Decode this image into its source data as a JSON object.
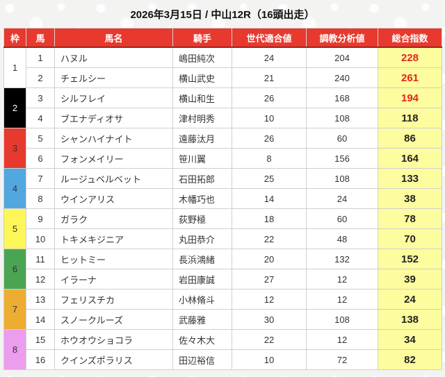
{
  "page": {
    "title": "2026年3月15日 / 中山12R（16頭出走）"
  },
  "colors": {
    "header_bg": "#e7392e",
    "header_fg": "#ffffff",
    "header_border_bottom": "#9e241c",
    "total_column_bg": "#fdfc9e",
    "hot_value": "#e8231f",
    "normal_value": "#222222",
    "table_border": "#cfcfcf",
    "page_bg": "#f3f3f2"
  },
  "table": {
    "headers": [
      {
        "key": "waku",
        "label": "枠"
      },
      {
        "key": "uma",
        "label": "馬"
      },
      {
        "key": "name",
        "label": "馬名"
      },
      {
        "key": "jockey",
        "label": "騎手"
      },
      {
        "key": "gen",
        "label": "世代適合値"
      },
      {
        "key": "train",
        "label": "調教分析値"
      },
      {
        "key": "total",
        "label": "総合指数"
      }
    ],
    "frames": [
      {
        "no": "1",
        "bg": "#ffffff",
        "fg": "#333333"
      },
      {
        "no": "2",
        "bg": "#000000",
        "fg": "#ffffff"
      },
      {
        "no": "3",
        "bg": "#e7392e",
        "fg": "#333333"
      },
      {
        "no": "4",
        "bg": "#52a7de",
        "fg": "#333333"
      },
      {
        "no": "5",
        "bg": "#fcf659",
        "fg": "#333333"
      },
      {
        "no": "6",
        "bg": "#4aa452",
        "fg": "#333333"
      },
      {
        "no": "7",
        "bg": "#edad33",
        "fg": "#333333"
      },
      {
        "no": "8",
        "bg": "#ec9ded",
        "fg": "#333333"
      }
    ],
    "rows": [
      {
        "num": "1",
        "name": "ハヌル",
        "jockey": "嶋田純次",
        "gen": "24",
        "train": "204",
        "total": "228",
        "hot": true
      },
      {
        "num": "2",
        "name": "チェルシー",
        "jockey": "横山武史",
        "gen": "21",
        "train": "240",
        "total": "261",
        "hot": true
      },
      {
        "num": "3",
        "name": "シルフレイ",
        "jockey": "横山和生",
        "gen": "26",
        "train": "168",
        "total": "194",
        "hot": true
      },
      {
        "num": "4",
        "name": "ブエナディオサ",
        "jockey": "津村明秀",
        "gen": "10",
        "train": "108",
        "total": "118",
        "hot": false
      },
      {
        "num": "5",
        "name": "シャンハイナイト",
        "jockey": "遠藤汰月",
        "gen": "26",
        "train": "60",
        "total": "86",
        "hot": false
      },
      {
        "num": "6",
        "name": "フォンメイリー",
        "jockey": "笹川翼",
        "gen": "8",
        "train": "156",
        "total": "164",
        "hot": false
      },
      {
        "num": "7",
        "name": "ルージュベルベット",
        "jockey": "石田拓郎",
        "gen": "25",
        "train": "108",
        "total": "133",
        "hot": false
      },
      {
        "num": "8",
        "name": "ウインアリス",
        "jockey": "木幡巧也",
        "gen": "14",
        "train": "24",
        "total": "38",
        "hot": false
      },
      {
        "num": "9",
        "name": "ガラク",
        "jockey": "荻野極",
        "gen": "18",
        "train": "60",
        "total": "78",
        "hot": false
      },
      {
        "num": "10",
        "name": "トキメキジニア",
        "jockey": "丸田恭介",
        "gen": "22",
        "train": "48",
        "total": "70",
        "hot": false
      },
      {
        "num": "11",
        "name": "ヒットミー",
        "jockey": "長浜鴻緒",
        "gen": "20",
        "train": "132",
        "total": "152",
        "hot": false
      },
      {
        "num": "12",
        "name": "イラーナ",
        "jockey": "岩田康誠",
        "gen": "27",
        "train": "12",
        "total": "39",
        "hot": false
      },
      {
        "num": "13",
        "name": "フェリスチカ",
        "jockey": "小林脩斗",
        "gen": "12",
        "train": "12",
        "total": "24",
        "hot": false
      },
      {
        "num": "14",
        "name": "スノークルーズ",
        "jockey": "武藤雅",
        "gen": "30",
        "train": "108",
        "total": "138",
        "hot": false
      },
      {
        "num": "15",
        "name": "ホウオウショコラ",
        "jockey": "佐々木大",
        "gen": "22",
        "train": "12",
        "total": "34",
        "hot": false
      },
      {
        "num": "16",
        "name": "クインズポラリス",
        "jockey": "田辺裕信",
        "gen": "10",
        "train": "72",
        "total": "82",
        "hot": false
      }
    ]
  }
}
